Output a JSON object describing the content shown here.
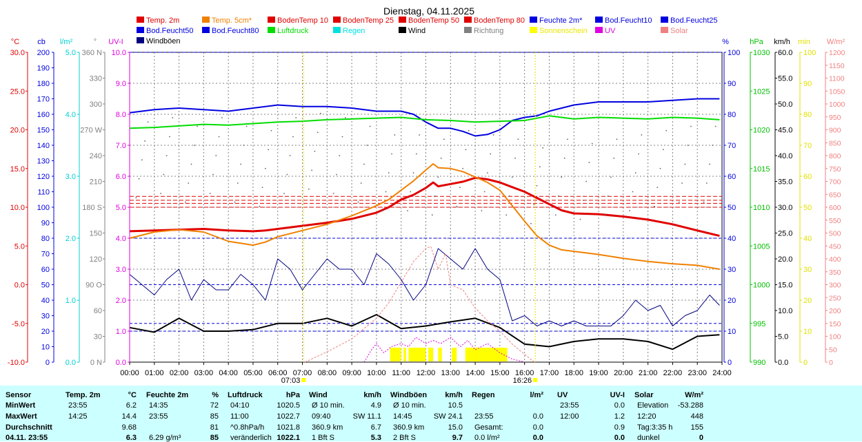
{
  "title": "Dienstag, 04.11.2025",
  "colors": {
    "bg": "#ffffff",
    "grid": "#808080",
    "stats_bg": "#ccffff"
  },
  "legend": [
    {
      "label": "Temp. 2m",
      "color": "#e00000"
    },
    {
      "label": "Temp. 5cm*",
      "color": "#f08000"
    },
    {
      "label": "BodenTemp 10",
      "color": "#e00000"
    },
    {
      "label": "BodenTemp 25",
      "color": "#e00000"
    },
    {
      "label": "BodenTemp 50",
      "color": "#e00000"
    },
    {
      "label": "BodenTemp 80",
      "color": "#e00000"
    },
    {
      "label": "Feuchte 2m*",
      "color": "#0000e0"
    },
    {
      "label": "Bod.Feucht10",
      "color": "#0000e0"
    },
    {
      "label": "Bod.Feucht25",
      "color": "#0000e0"
    },
    {
      "label": "Bod.Feucht50",
      "color": "#0000e0"
    },
    {
      "label": "Bod.Feucht80",
      "color": "#0000e0"
    },
    {
      "label": "Luftdruck",
      "color": "#00dd00"
    },
    {
      "label": "Regen",
      "color": "#00e0e0"
    },
    {
      "label": "Wind",
      "color": "#000000"
    },
    {
      "label": "Richtung",
      "color": "#808080"
    },
    {
      "label": "Sonnenschein",
      "color": "#ffff00"
    },
    {
      "label": "UV",
      "color": "#e000e0"
    },
    {
      "label": "Solar",
      "color": "#f08080"
    },
    {
      "label": "Windböen",
      "color": "#000080"
    }
  ],
  "axes_left": [
    {
      "unit": "°C",
      "color": "#e00000",
      "ticks": [
        "30.0",
        "25.0",
        "20.0",
        "15.0",
        "10.0",
        "5.0",
        "0.0",
        "-5.0",
        "-10.0"
      ]
    },
    {
      "unit": "cb",
      "color": "#0000e0",
      "ticks": [
        "200",
        "190",
        "180",
        "170",
        "160",
        "150",
        "140",
        "130",
        "120",
        "110",
        "100",
        "90",
        "80",
        "70",
        "60",
        "50",
        "40",
        "30",
        "20",
        "10",
        "0"
      ]
    },
    {
      "unit": "l/m²",
      "color": "#00d0d0",
      "ticks": [
        "5.0",
        "4.0",
        "3.0",
        "2.0",
        "1.0",
        "0.0"
      ]
    },
    {
      "unit": "°",
      "color": "#808080",
      "ticks": [
        "360 N",
        "330",
        "300",
        "270 W",
        "240",
        "210",
        "180 S",
        "150",
        "120",
        "90  O",
        "60",
        "30",
        "0  N"
      ]
    },
    {
      "unit": "UV-I",
      "color": "#e000e0",
      "ticks": [
        "10.0",
        "9.0",
        "8.0",
        "7.0",
        "6.0",
        "5.0",
        "4.0",
        "3.0",
        "2.0",
        "1.0",
        "0.0"
      ]
    }
  ],
  "axes_right": [
    {
      "unit": "%",
      "color": "#0000e0",
      "ticks": [
        "100",
        "90",
        "80",
        "70",
        "60",
        "50",
        "40",
        "30",
        "20",
        "10",
        "0"
      ]
    },
    {
      "unit": "hPa",
      "color": "#00c000",
      "ticks": [
        "1030",
        "1025",
        "1020",
        "1015",
        "1010",
        "1005",
        "1000",
        "995",
        "990"
      ]
    },
    {
      "unit": "km/h",
      "color": "#000000",
      "ticks": [
        "60.0",
        "55.0",
        "50.0",
        "45.0",
        "40.0",
        "35.0",
        "30.0",
        "25.0",
        "20.0",
        "15.0",
        "10.0",
        "5.0",
        "0.0"
      ]
    },
    {
      "unit": "min",
      "color": "#e0e000",
      "ticks": [
        "100",
        "90",
        "80",
        "70",
        "60",
        "50",
        "40",
        "30",
        "20",
        "10",
        "0"
      ]
    },
    {
      "unit": "W/m²",
      "color": "#f08080",
      "ticks": [
        "1200",
        "1150",
        "1100",
        "1050",
        "1000",
        "950",
        "900",
        "850",
        "800",
        "750",
        "700",
        "650",
        "600",
        "550",
        "500",
        "450",
        "400",
        "350",
        "300",
        "250",
        "200",
        "150",
        "100",
        "50",
        "0"
      ]
    }
  ],
  "time_ticks": [
    "00:00",
    "01:00",
    "02:00",
    "03:00",
    "04:00",
    "05:00",
    "06:00",
    "07:00",
    "08:00",
    "09:00",
    "10:00",
    "11:00",
    "12:00",
    "13:00",
    "14:00",
    "15:00",
    "16:00",
    "17:00",
    "18:00",
    "19:00",
    "20:00",
    "21:00",
    "22:00",
    "23:00",
    "24:00"
  ],
  "sunrise": "07:03",
  "sunset": "16:26",
  "chart_data": {
    "type": "line",
    "title": "Dienstag, 04.11.2025",
    "x_unit": "hours",
    "xlim": [
      0,
      24
    ],
    "series": [
      {
        "name": "Temp. 2m",
        "axis": "°C",
        "ylim": [
          -10,
          30
        ],
        "color": "#e00000",
        "x": [
          0,
          1,
          2,
          3,
          4,
          5,
          5.5,
          6,
          7,
          8,
          9,
          10,
          10.5,
          11,
          11.5,
          12,
          12.3,
          12.5,
          13,
          13.5,
          14,
          14.5,
          15,
          15.5,
          16,
          16.5,
          17,
          17.5,
          18,
          19,
          20,
          21,
          22,
          23,
          23.9
        ],
        "y": [
          6.9,
          7.0,
          7.1,
          7.2,
          7.0,
          6.9,
          7.0,
          7.2,
          7.6,
          8.0,
          8.5,
          9.3,
          10.0,
          11.0,
          11.6,
          12.5,
          13.2,
          12.7,
          13.0,
          13.3,
          13.8,
          13.6,
          13.2,
          12.6,
          12.0,
          11.2,
          10.4,
          9.6,
          9.2,
          9.1,
          8.8,
          8.4,
          7.8,
          7.0,
          6.3
        ]
      },
      {
        "name": "Temp. 5cm*",
        "axis": "°C",
        "ylim": [
          -10,
          30
        ],
        "color": "#f08000",
        "x": [
          0,
          1,
          2,
          3,
          4,
          5,
          5.5,
          6,
          7,
          8,
          9,
          10,
          10.5,
          11,
          11.5,
          12,
          12.3,
          12.5,
          13,
          13.5,
          14,
          14.5,
          15,
          15.5,
          16,
          16.5,
          17,
          17.5,
          18,
          19,
          20,
          21,
          22,
          23,
          23.9
        ],
        "y": [
          6.0,
          6.8,
          7.1,
          6.8,
          5.6,
          5.1,
          5.5,
          6.2,
          7.0,
          7.8,
          8.9,
          10.2,
          11.0,
          12.2,
          13.4,
          14.8,
          15.6,
          15.1,
          15.0,
          14.6,
          13.9,
          13.2,
          12.2,
          10.2,
          8.2,
          6.3,
          5.1,
          4.5,
          4.3,
          3.9,
          3.4,
          3.0,
          2.7,
          2.5,
          2.0
        ]
      },
      {
        "name": "Bod.Feucht10",
        "axis": "%",
        "ylim": [
          0,
          100
        ],
        "color": "#0000e0",
        "x": [
          0,
          1,
          2,
          3,
          4,
          5,
          6,
          7,
          8,
          9,
          10,
          11,
          11.5,
          12,
          12.5,
          13,
          13.5,
          14,
          14.5,
          15,
          15.5,
          16,
          16.5,
          17,
          17.5,
          18,
          19,
          20,
          21,
          22,
          23,
          23.9
        ],
        "y": [
          80.5,
          81.5,
          82.0,
          81.5,
          81.0,
          82.0,
          83.0,
          82.5,
          82.5,
          82.0,
          81.0,
          81.0,
          80.0,
          77.5,
          75.5,
          75.5,
          74.5,
          73.0,
          73.5,
          75.0,
          78.0,
          79.0,
          79.5,
          81.0,
          82.0,
          83.0,
          84.0,
          84.0,
          84.0,
          84.5,
          85.0,
          85.0
        ]
      },
      {
        "name": "Luftdruck",
        "axis": "hPa",
        "ylim": [
          990,
          1030
        ],
        "color": "#00dd00",
        "x": [
          0,
          1,
          2,
          3,
          4,
          5,
          6,
          7,
          8,
          9,
          10,
          11,
          12,
          13,
          14,
          15,
          16,
          17,
          18,
          19,
          20,
          21,
          22,
          23,
          23.9
        ],
        "y": [
          1020.2,
          1020.3,
          1020.5,
          1020.7,
          1020.6,
          1020.8,
          1021.0,
          1021.1,
          1021.3,
          1021.4,
          1021.5,
          1021.6,
          1021.3,
          1021.2,
          1021.0,
          1021.1,
          1021.2,
          1021.8,
          1021.4,
          1021.6,
          1021.5,
          1021.4,
          1021.6,
          1021.5,
          1021.3
        ]
      },
      {
        "name": "Wind",
        "axis": "km/h",
        "ylim": [
          0,
          60
        ],
        "color": "#000000",
        "x": [
          0,
          1,
          2,
          3,
          4,
          5,
          6,
          7,
          8,
          9,
          10,
          11,
          12,
          13,
          14,
          15,
          16,
          17,
          18,
          19,
          20,
          21,
          22,
          23,
          23.9
        ],
        "y": [
          6.7,
          5.8,
          8.5,
          6.0,
          6.0,
          6.3,
          7.5,
          7.5,
          8.5,
          7.0,
          9.2,
          6.5,
          7.0,
          7.8,
          8.5,
          6.7,
          3.5,
          3.0,
          4.0,
          4.5,
          4.5,
          4.0,
          2.5,
          5.0,
          5.3
        ]
      },
      {
        "name": "Windböen",
        "axis": "km/h",
        "ylim": [
          0,
          60
        ],
        "color": "#000080",
        "x": [
          0,
          0.5,
          1,
          1.5,
          2,
          2.5,
          3,
          3.5,
          4,
          4.5,
          5,
          5.5,
          6,
          6.5,
          7,
          7.5,
          8,
          8.5,
          9,
          9.5,
          10,
          10.5,
          11,
          11.5,
          12,
          12.5,
          13,
          13.5,
          14,
          14.5,
          15,
          15.5,
          16,
          16.5,
          17,
          17.5,
          18,
          18.5,
          19,
          19.5,
          20,
          20.5,
          21,
          21.5,
          22,
          22.5,
          23,
          23.5,
          23.9
        ],
        "y": [
          17,
          15,
          13,
          16,
          18,
          12,
          16,
          14,
          14,
          17,
          15,
          12,
          20,
          18,
          14,
          17,
          20,
          18,
          18,
          15,
          21,
          19,
          16,
          12,
          15,
          22,
          20,
          18,
          22,
          18,
          16,
          8,
          9,
          7,
          8,
          7,
          8,
          7,
          7,
          7,
          9,
          12,
          10,
          11,
          7,
          9,
          10,
          13,
          11
        ]
      },
      {
        "name": "Richtung",
        "axis": "°",
        "ylim": [
          0,
          360
        ],
        "color": "#808080",
        "x": [
          0.5,
          1.5,
          2.5,
          3.5,
          4.5,
          5.5,
          6.5,
          7.5,
          8.5,
          9.5,
          10.5,
          11.5,
          12.5,
          13.5,
          14.5,
          15.5,
          16.5,
          17.5,
          18.5,
          19.5,
          20.5,
          21.5,
          22.5,
          23.5
        ],
        "y": [
          235,
          240,
          230,
          240,
          230,
          225,
          240,
          245,
          240,
          230,
          220,
          220,
          215,
          225,
          220,
          215,
          205,
          215,
          210,
          215,
          220,
          225,
          230,
          230
        ]
      },
      {
        "name": "UV",
        "axis": "UV-I",
        "ylim": [
          0,
          10
        ],
        "color": "#e000e0",
        "x": [
          9.5,
          9.8,
          10.0,
          10.3,
          10.6,
          11.0,
          11.3,
          11.6,
          12.0,
          12.3,
          12.6,
          13.0,
          13.4,
          13.7,
          14.0,
          14.5,
          15.0,
          15.5,
          16.0
        ],
        "y": [
          0.0,
          0.4,
          0.6,
          0.3,
          0.5,
          0.6,
          0.5,
          0.8,
          0.6,
          0.7,
          0.6,
          0.8,
          0.5,
          0.7,
          0.4,
          0.6,
          0.3,
          0.1,
          0.0
        ]
      },
      {
        "name": "Solar",
        "axis": "W/m²",
        "ylim": [
          0,
          1200
        ],
        "color": "#f08080",
        "x": [
          7.1,
          8,
          9,
          9.5,
          10,
          10.5,
          11,
          11.5,
          12,
          12.2,
          12.5,
          12.8,
          13,
          13.5,
          14,
          14.5,
          15,
          15.5,
          16,
          16.4
        ],
        "y": [
          0,
          40,
          90,
          130,
          170,
          230,
          310,
          390,
          440,
          448,
          360,
          420,
          300,
          280,
          210,
          160,
          120,
          70,
          30,
          0
        ]
      }
    ],
    "sunshine_blocks": [
      [
        10.55,
        11.0
      ],
      [
        11.1,
        11.2
      ],
      [
        11.3,
        12.0
      ],
      [
        12.1,
        12.3
      ],
      [
        12.5,
        12.65
      ],
      [
        13.05,
        13.25
      ],
      [
        13.6,
        15.3
      ]
    ]
  },
  "stats": {
    "columns": [
      {
        "header": "Sensor",
        "unit": ""
      },
      {
        "header": "Temp. 2m",
        "unit": "°C"
      },
      {
        "header": "Feuchte 2m",
        "unit": "%"
      },
      {
        "header": "Luftdruck",
        "unit": "hPa"
      },
      {
        "header": "Wind",
        "unit": "km/h"
      },
      {
        "header": "Windböen",
        "unit": "km/h"
      },
      {
        "header": "Regen",
        "unit": "l/m²"
      },
      {
        "header": "UV",
        "unit": "UV-I"
      },
      {
        "header": "Solar",
        "unit": "W/m²"
      }
    ],
    "rows": [
      {
        "label": "MinWert",
        "cells": [
          [
            "23:55",
            "6.2"
          ],
          [
            "14:35",
            "72"
          ],
          [
            "04:10",
            "1020.5"
          ],
          [
            "Ø 10 min.",
            "4.9"
          ],
          [
            "Ø 10 min.",
            "10.5"
          ],
          [
            "",
            ""
          ],
          [
            "23:55",
            "0.0"
          ],
          [
            "Elevation",
            "-53.288"
          ]
        ]
      },
      {
        "label": "MaxWert",
        "cells": [
          [
            "14:25",
            "14.4"
          ],
          [
            "23:55",
            "85"
          ],
          [
            "11:00",
            "1022.7"
          ],
          [
            "09:40",
            "SW 11.1"
          ],
          [
            "14:45",
            "SW 24.1"
          ],
          [
            "23:55",
            "0.0"
          ],
          [
            "12:00",
            "1.2"
          ],
          [
            "12:20",
            "448"
          ]
        ]
      },
      {
        "label": "Durchschnitt",
        "cells": [
          [
            "",
            "9.68"
          ],
          [
            "",
            "81"
          ],
          [
            "^0.8hPa/h",
            "1021.8"
          ],
          [
            "360.9 km",
            "6.7"
          ],
          [
            "360.9 km",
            "15.0"
          ],
          [
            "Gesamt:",
            "0.0"
          ],
          [
            "",
            "0.9"
          ],
          [
            "Tag:3:35 h",
            "155"
          ]
        ]
      },
      {
        "label": "04.11. 23:55",
        "cells": [
          [
            "",
            "6.3"
          ],
          [
            "6.29 g/m³",
            "85"
          ],
          [
            "veränderlich",
            "1022.1"
          ],
          [
            "1 Bft S",
            "5.3"
          ],
          [
            "2 Bft S",
            "9.7"
          ],
          [
            "0.0 l/m²",
            "0.0"
          ],
          [
            "",
            "0.0"
          ],
          [
            "dunkel",
            "0"
          ]
        ]
      }
    ]
  }
}
